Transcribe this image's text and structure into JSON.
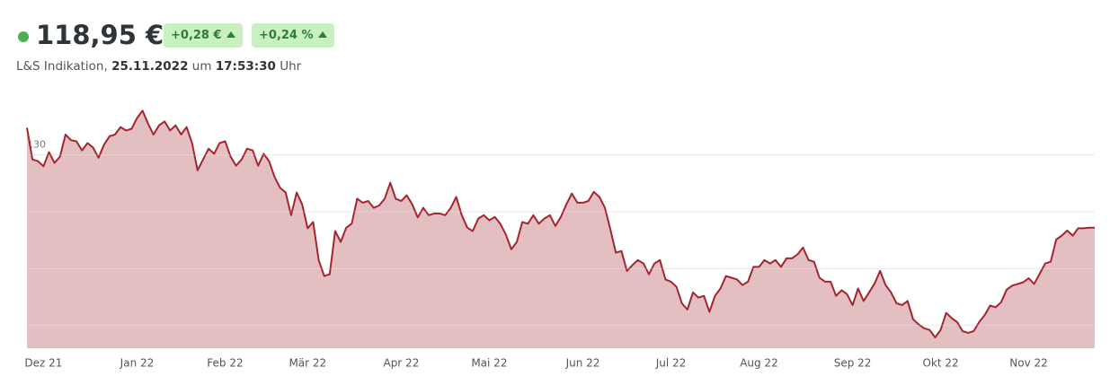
{
  "quote": {
    "price": "118,95 €",
    "change_abs": "+0,28 €",
    "change_pct": "+0,24 %",
    "indication": [
      "L&S Indikation, ",
      "25.11.2022",
      " um ",
      "17:53:30",
      " Uhr"
    ]
  },
  "chart_data": {
    "type": "area",
    "color": "#a3262f",
    "fill": "#e3bfc2",
    "values": [
      134.8,
      129.2,
      128.9,
      128,
      130.5,
      128.6,
      129.7,
      133.6,
      132.6,
      132.4,
      130.8,
      132.1,
      131.3,
      129.5,
      131.8,
      133.3,
      133.6,
      134.9,
      134.3,
      134.6,
      136.5,
      137.8,
      135.5,
      133.6,
      135.2,
      135.9,
      134.3,
      135.2,
      133.6,
      134.9,
      132.1,
      127.3,
      129.2,
      131.1,
      130.2,
      132.1,
      132.4,
      129.7,
      128.1,
      129.2,
      131.1,
      130.8,
      128.1,
      130.2,
      128.9,
      126.1,
      124.2,
      123.4,
      119.4,
      123.4,
      121.3,
      117.1,
      118.2,
      111.5,
      108.7,
      109,
      116.6,
      114.7,
      117.2,
      117.9,
      122.3,
      121.6,
      121.9,
      120.7,
      121.1,
      122.3,
      125.1,
      122.3,
      121.9,
      122.9,
      121.3,
      119,
      120.7,
      119.4,
      119.7,
      119.7,
      119.4,
      120.7,
      122.6,
      119.4,
      117.2,
      116.6,
      118.8,
      119.4,
      118.5,
      119.1,
      117.9,
      116,
      113.4,
      114.7,
      118.2,
      117.9,
      119.4,
      117.9,
      118.8,
      119.4,
      117.5,
      119.1,
      121.3,
      123.2,
      121.6,
      121.6,
      121.9,
      123.5,
      122.6,
      120.7,
      116.9,
      112.8,
      113.1,
      109.6,
      110.6,
      111.5,
      110.9,
      109,
      110.9,
      111.5,
      108.1,
      107.7,
      106.8,
      103.9,
      102.8,
      105.8,
      104.9,
      105.2,
      102.4,
      105.2,
      106.5,
      108.7,
      108.4,
      108.1,
      107.1,
      107.7,
      110.3,
      110.3,
      111.5,
      110.9,
      111.5,
      110.3,
      111.8,
      111.8,
      112.5,
      113.7,
      111.5,
      111.2,
      108.4,
      107.7,
      107.7,
      105.2,
      106.2,
      105.5,
      103.6,
      106.5,
      104.3,
      105.8,
      107.4,
      109.6,
      107.1,
      105.8,
      103.9,
      103.6,
      104.3,
      101.1,
      100.2,
      99.5,
      99.2,
      97.9,
      99.2,
      102.2,
      101.3,
      100.6,
      99,
      98.7,
      99,
      100.6,
      101.8,
      103.5,
      103.2,
      104.1,
      106.3,
      107,
      107.3,
      107.6,
      108.3,
      107.3,
      109.1,
      110.9,
      111.2,
      115.1,
      115.8,
      116.7,
      115.8,
      117.1,
      117.1,
      117.2,
      117.2
    ],
    "xlim": [
      0,
      194
    ],
    "xticks": [
      {
        "value": 3,
        "label": "Dez 21"
      },
      {
        "value": 20,
        "label": "Jan 22"
      },
      {
        "value": 36,
        "label": "Feb 22"
      },
      {
        "value": 51,
        "label": "Mär 22"
      },
      {
        "value": 68,
        "label": "Apr 22"
      },
      {
        "value": 84,
        "label": "Mai 22"
      },
      {
        "value": 101,
        "label": "Jun 22"
      },
      {
        "value": 117,
        "label": "Jul 22"
      },
      {
        "value": 133,
        "label": "Aug 22"
      },
      {
        "value": 150,
        "label": "Sep 22"
      },
      {
        "value": 166,
        "label": "Okt 22"
      },
      {
        "value": 182,
        "label": "Nov 22"
      }
    ],
    "ylim": [
      96,
      138
    ],
    "yticks": [
      100,
      110,
      120,
      130
    ],
    "grid": true
  }
}
